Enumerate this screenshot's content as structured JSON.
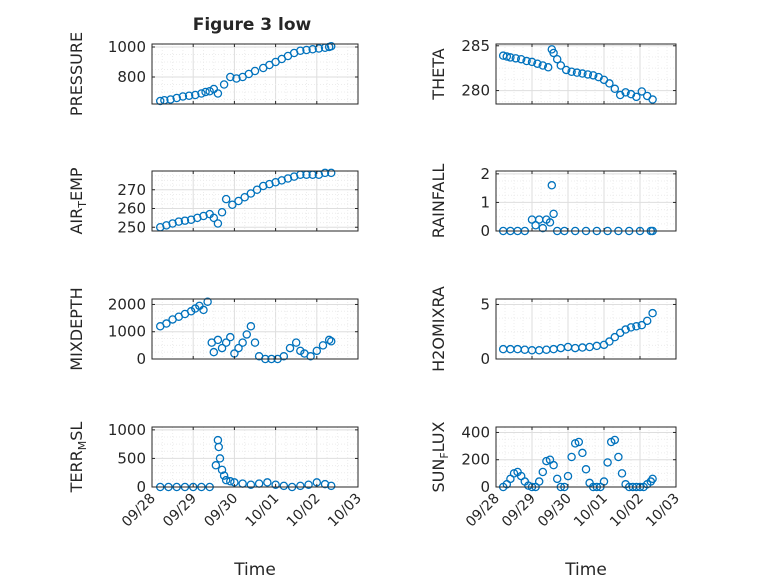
{
  "figure": {
    "title": "Figure 3 low",
    "marker_color": "#0072bd",
    "grid": "major+minor dotted",
    "time_tick_labels": [
      "09/28",
      "09/29",
      "09/30",
      "10/01",
      "10/02",
      "10/03"
    ],
    "time_label": "Time"
  },
  "chart_data": [
    {
      "type": "scatter",
      "id": "pressure",
      "ylabel_main": "PRESSURE",
      "ylabel_sub": "",
      "ylim": [
        620,
        1020
      ],
      "yticks": [
        800,
        1000
      ],
      "xlim": [
        0,
        5
      ],
      "x": [
        0.2,
        0.3,
        0.45,
        0.6,
        0.75,
        0.9,
        1.05,
        1.2,
        1.3,
        1.4,
        1.5,
        1.6,
        1.75,
        1.9,
        2.05,
        2.2,
        2.35,
        2.5,
        2.7,
        2.85,
        3.0,
        3.15,
        3.3,
        3.45,
        3.6,
        3.75,
        3.9,
        4.05,
        4.2,
        4.3,
        4.35
      ],
      "y": [
        640,
        645,
        650,
        660,
        670,
        675,
        680,
        690,
        700,
        705,
        720,
        690,
        750,
        800,
        790,
        800,
        820,
        840,
        860,
        880,
        900,
        920,
        940,
        960,
        975,
        980,
        985,
        990,
        995,
        1000,
        1005
      ]
    },
    {
      "type": "scatter",
      "id": "theta",
      "ylabel_main": "THETA",
      "ylabel_sub": "",
      "ylim": [
        278.5,
        285.2
      ],
      "yticks": [
        280,
        285
      ],
      "xlim": [
        0,
        5
      ],
      "x": [
        0.2,
        0.3,
        0.4,
        0.55,
        0.7,
        0.85,
        1.0,
        1.15,
        1.3,
        1.45,
        1.55,
        1.6,
        1.7,
        1.8,
        1.95,
        2.1,
        2.25,
        2.4,
        2.55,
        2.7,
        2.85,
        3.0,
        3.15,
        3.3,
        3.45,
        3.6,
        3.75,
        3.9,
        4.05,
        4.2,
        4.35
      ],
      "y": [
        283.9,
        283.8,
        283.7,
        283.6,
        283.5,
        283.3,
        283.2,
        283.0,
        282.8,
        282.6,
        284.6,
        284.2,
        283.5,
        282.8,
        282.3,
        282.1,
        282.0,
        281.9,
        281.8,
        281.7,
        281.5,
        281.2,
        280.8,
        280.2,
        279.5,
        279.8,
        279.6,
        279.3,
        279.9,
        279.4,
        279.0
      ]
    },
    {
      "type": "scatter",
      "id": "air_temp",
      "ylabel_main": "AIR",
      "ylabel_sub": "T",
      "ylabel_after": "EMP",
      "ylim": [
        248,
        280
      ],
      "yticks": [
        250,
        260,
        270
      ],
      "xlim": [
        0,
        5
      ],
      "x": [
        0.2,
        0.35,
        0.5,
        0.65,
        0.8,
        0.95,
        1.1,
        1.25,
        1.4,
        1.5,
        1.6,
        1.7,
        1.8,
        1.95,
        2.1,
        2.25,
        2.4,
        2.55,
        2.7,
        2.85,
        3.0,
        3.15,
        3.3,
        3.45,
        3.6,
        3.75,
        3.9,
        4.05,
        4.2,
        4.35
      ],
      "y": [
        250,
        251,
        252,
        253,
        253.5,
        254,
        255,
        256,
        257,
        255,
        252,
        258,
        265,
        262,
        264,
        266,
        268,
        270,
        272,
        273,
        274,
        275,
        276,
        277,
        278,
        278,
        278,
        278,
        279,
        279
      ]
    },
    {
      "type": "scatter",
      "id": "rainfall",
      "ylabel_main": "RAINFALL",
      "ylabel_sub": "",
      "ylim": [
        0,
        2.1
      ],
      "yticks": [
        0,
        1,
        2
      ],
      "xlim": [
        0,
        5
      ],
      "x": [
        0.2,
        0.4,
        0.6,
        0.8,
        1.0,
        1.1,
        1.2,
        1.3,
        1.4,
        1.5,
        1.55,
        1.6,
        1.7,
        1.9,
        2.2,
        2.5,
        2.8,
        3.1,
        3.4,
        3.7,
        4.0,
        4.3,
        4.35
      ],
      "y": [
        0,
        0,
        0,
        0,
        0.4,
        0.2,
        0.4,
        0.1,
        0.4,
        0.3,
        1.6,
        0.6,
        0,
        0,
        0,
        0,
        0,
        0,
        0,
        0,
        0,
        0,
        0
      ]
    },
    {
      "type": "scatter",
      "id": "mixdepth",
      "ylabel_main": "MIXDEPTH",
      "ylabel_sub": "",
      "ylim": [
        0,
        2200
      ],
      "yticks": [
        0,
        1000,
        2000
      ],
      "xlim": [
        0,
        5
      ],
      "x": [
        0.2,
        0.35,
        0.5,
        0.65,
        0.8,
        0.95,
        1.05,
        1.15,
        1.25,
        1.35,
        1.45,
        1.5,
        1.6,
        1.7,
        1.8,
        1.9,
        2.0,
        2.1,
        2.2,
        2.3,
        2.4,
        2.5,
        2.6,
        2.75,
        2.9,
        3.05,
        3.2,
        3.35,
        3.5,
        3.6,
        3.7,
        3.85,
        4.0,
        4.15,
        4.3,
        4.35
      ],
      "y": [
        1200,
        1300,
        1450,
        1550,
        1650,
        1750,
        1850,
        1950,
        1800,
        2100,
        600,
        250,
        700,
        400,
        600,
        800,
        200,
        400,
        600,
        900,
        1200,
        600,
        100,
        0,
        0,
        0,
        100,
        400,
        600,
        300,
        200,
        100,
        300,
        500,
        700,
        650
      ]
    },
    {
      "type": "scatter",
      "id": "h2omixra",
      "ylabel_main": "H2OMIXRA",
      "ylabel_sub": "",
      "ylim": [
        0,
        5.5
      ],
      "yticks": [
        0,
        5
      ],
      "xlim": [
        0,
        5
      ],
      "x": [
        0.2,
        0.4,
        0.6,
        0.8,
        1.0,
        1.2,
        1.4,
        1.6,
        1.8,
        2.0,
        2.2,
        2.4,
        2.6,
        2.8,
        3.0,
        3.15,
        3.3,
        3.45,
        3.6,
        3.75,
        3.9,
        4.05,
        4.2,
        4.35
      ],
      "y": [
        0.9,
        0.9,
        0.9,
        0.85,
        0.8,
        0.8,
        0.85,
        0.9,
        1.0,
        1.1,
        1.0,
        1.05,
        1.1,
        1.2,
        1.3,
        1.6,
        2.0,
        2.4,
        2.7,
        2.9,
        3.0,
        3.1,
        3.5,
        4.2
      ]
    },
    {
      "type": "scatter",
      "id": "terr_msl",
      "ylabel_main": "TERR",
      "ylabel_sub": "M",
      "ylabel_after": "SL",
      "ylim": [
        0,
        1050
      ],
      "yticks": [
        0,
        500,
        1000
      ],
      "xlim": [
        0,
        5
      ],
      "x": [
        0.2,
        0.4,
        0.6,
        0.8,
        1.0,
        1.2,
        1.4,
        1.55,
        1.6,
        1.62,
        1.65,
        1.7,
        1.75,
        1.8,
        1.9,
        2.0,
        2.2,
        2.4,
        2.6,
        2.8,
        3.0,
        3.2,
        3.4,
        3.6,
        3.8,
        4.0,
        4.2,
        4.35
      ],
      "y": [
        0,
        0,
        0,
        0,
        0,
        0,
        0,
        380,
        820,
        700,
        500,
        300,
        200,
        120,
        100,
        80,
        60,
        40,
        60,
        80,
        40,
        20,
        0,
        20,
        40,
        80,
        50,
        20
      ]
    },
    {
      "type": "scatter",
      "id": "sun_flux",
      "ylabel_main": "SUN",
      "ylabel_sub": "F",
      "ylabel_after": "LUX",
      "ylim": [
        0,
        440
      ],
      "yticks": [
        0,
        200,
        400
      ],
      "xlim": [
        0,
        5
      ],
      "x": [
        0.2,
        0.3,
        0.4,
        0.5,
        0.6,
        0.7,
        0.8,
        0.9,
        1.0,
        1.1,
        1.2,
        1.3,
        1.4,
        1.5,
        1.6,
        1.7,
        1.8,
        1.9,
        2.0,
        2.1,
        2.2,
        2.3,
        2.4,
        2.5,
        2.6,
        2.7,
        2.8,
        2.9,
        3.0,
        3.1,
        3.2,
        3.3,
        3.4,
        3.5,
        3.6,
        3.7,
        3.8,
        3.9,
        4.0,
        4.1,
        4.2,
        4.3,
        4.35
      ],
      "y": [
        0,
        20,
        60,
        100,
        110,
        80,
        40,
        10,
        0,
        0,
        40,
        110,
        190,
        200,
        160,
        60,
        0,
        0,
        80,
        220,
        320,
        330,
        250,
        130,
        30,
        0,
        0,
        0,
        40,
        180,
        330,
        345,
        220,
        100,
        20,
        0,
        0,
        0,
        0,
        0,
        20,
        40,
        60
      ]
    }
  ]
}
